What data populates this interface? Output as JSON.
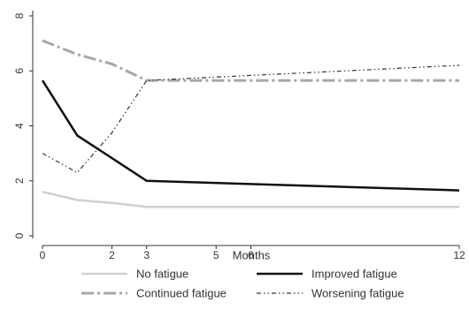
{
  "chart_data": {
    "type": "line",
    "title": "",
    "xlabel": "Months",
    "ylabel": "",
    "xlim": [
      0,
      12
    ],
    "ylim": [
      0,
      8
    ],
    "xticks": [
      0,
      2,
      3,
      5,
      6,
      12
    ],
    "yticks": [
      0,
      2,
      4,
      6,
      8
    ],
    "grid": false,
    "legend_position": "bottom",
    "series": [
      {
        "name": "No fatigue",
        "color": "#cfcfcf",
        "style": "solid",
        "x": [
          0,
          1,
          2,
          3,
          12
        ],
        "y": [
          1.6,
          1.3,
          1.2,
          1.05,
          1.05
        ]
      },
      {
        "name": "Improved fatigue",
        "color": "#111111",
        "style": "solid",
        "x": [
          0,
          1,
          3,
          12
        ],
        "y": [
          5.65,
          3.65,
          2.0,
          1.65
        ]
      },
      {
        "name": "Continued fatigue",
        "color": "#a8a8a8",
        "style": "longdash-dot",
        "x": [
          0,
          1,
          2,
          3,
          12
        ],
        "y": [
          7.1,
          6.6,
          6.25,
          5.65,
          5.65
        ]
      },
      {
        "name": "Worsening fatigue",
        "color": "#333333",
        "style": "dash-dot-dot",
        "x": [
          0,
          1,
          2,
          3,
          12
        ],
        "y": [
          3.0,
          2.3,
          3.75,
          5.65,
          6.2
        ]
      }
    ]
  }
}
